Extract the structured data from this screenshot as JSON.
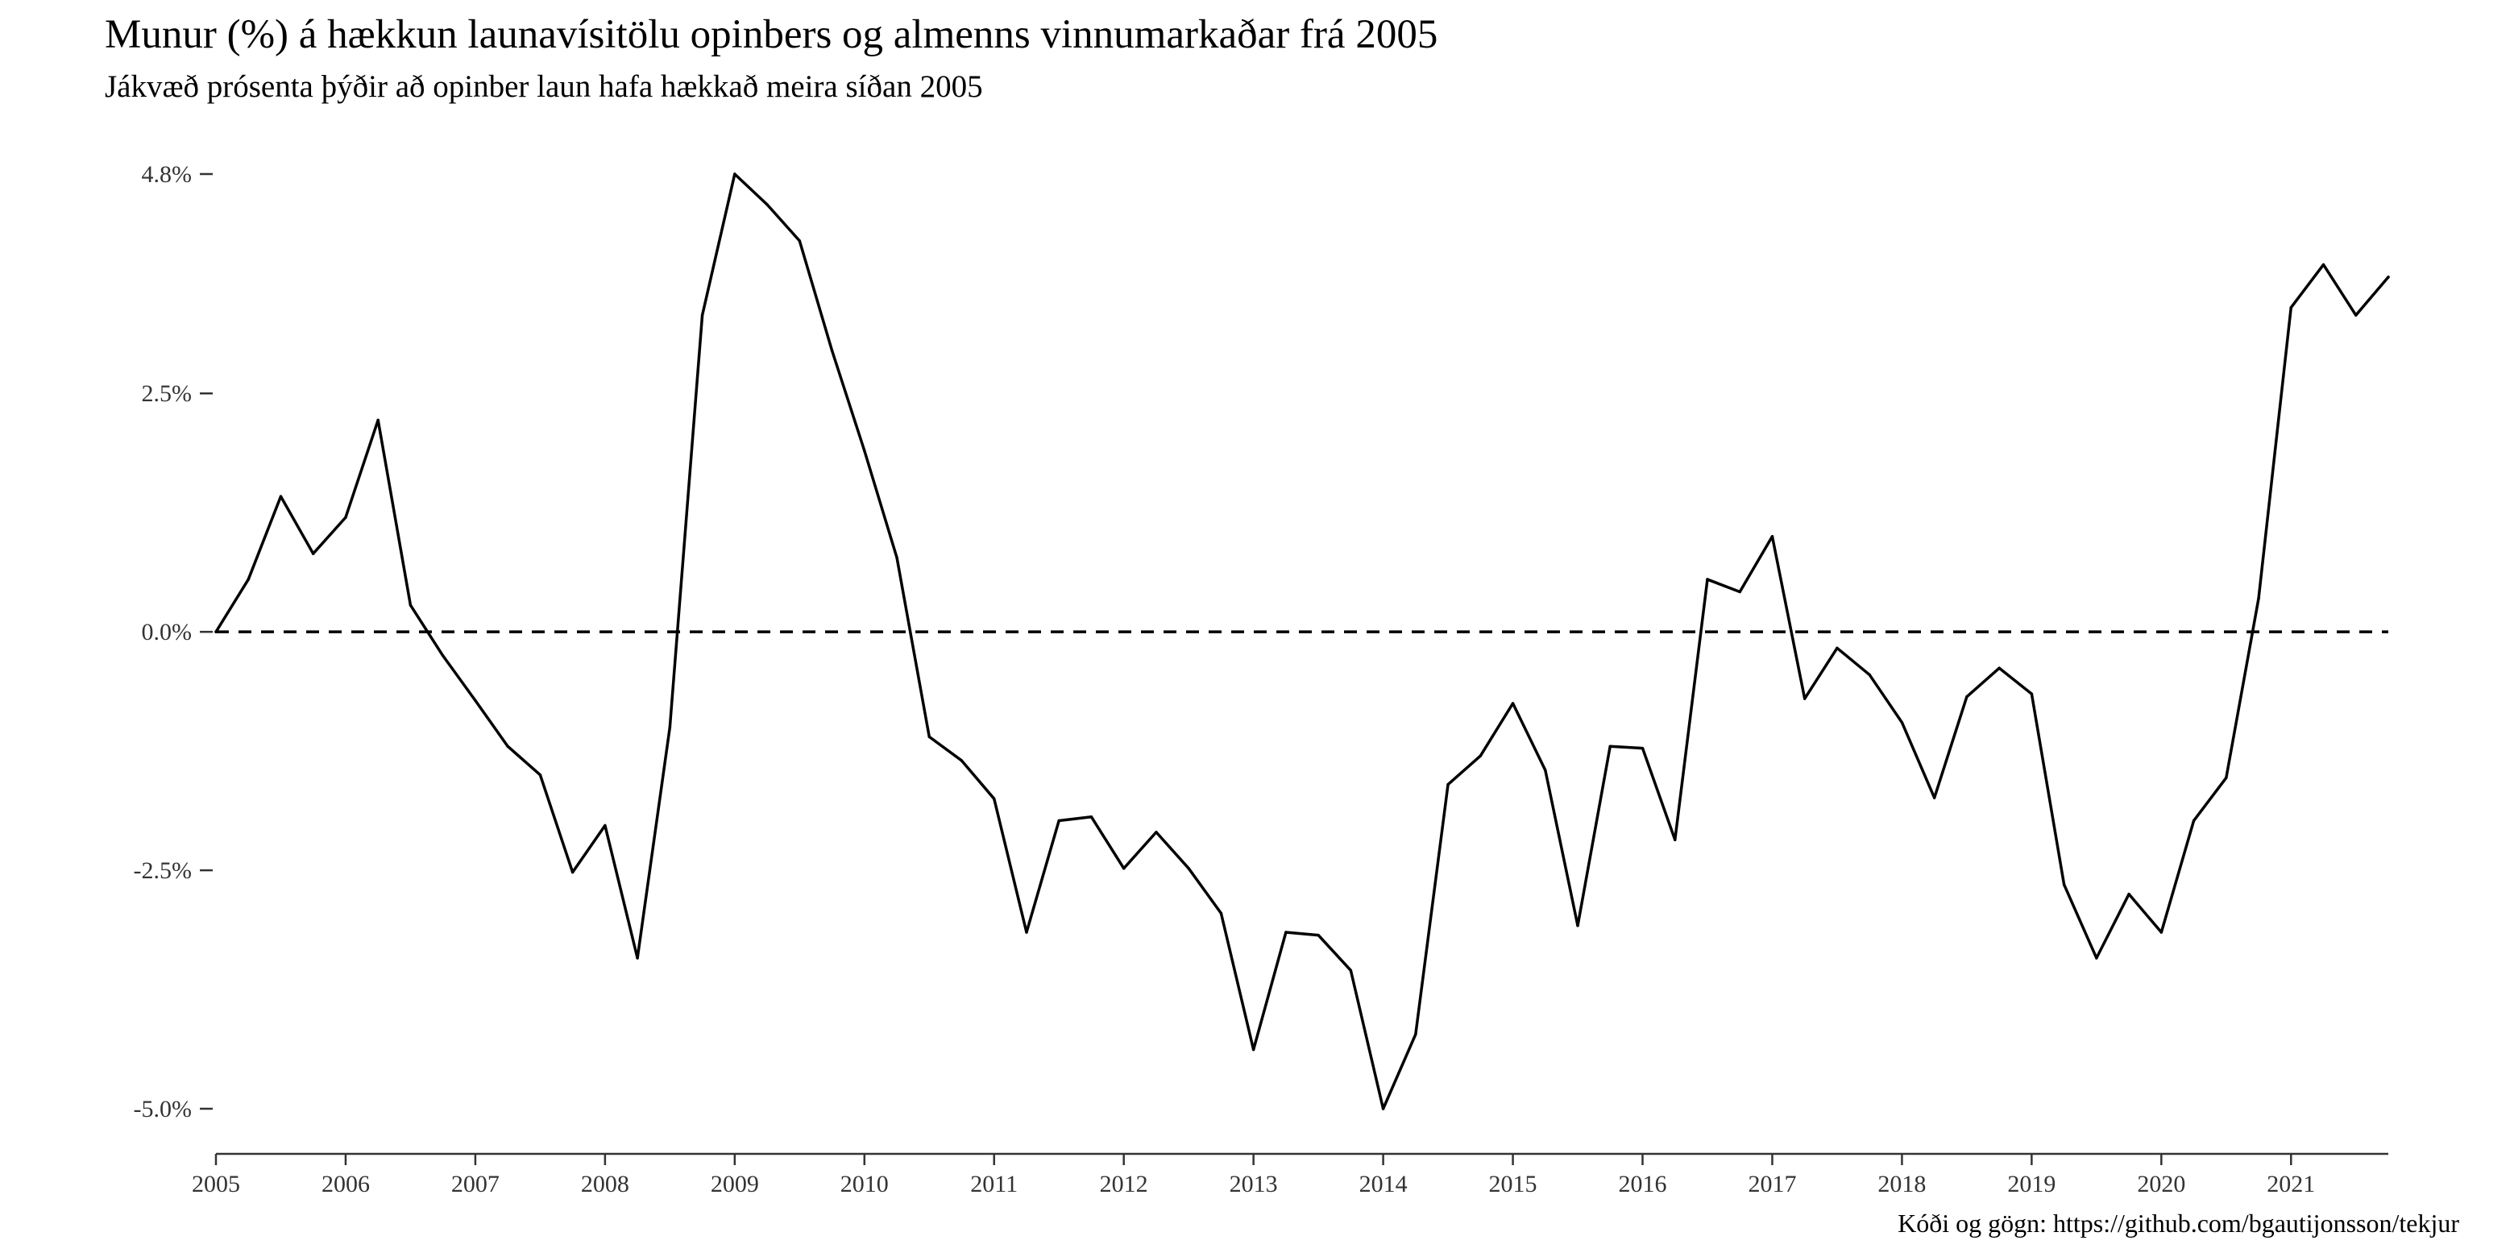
{
  "chart_data": {
    "type": "line",
    "title": "Munur (%) á hækkun launavísitölu opinbers og almenns vinnumarkaðar frá 2005",
    "subtitle": "Jákvæð prósenta þýðir að opinber laun hafa hækkað meira síðan 2005",
    "caption": "Kóði og gögn: https://github.com/bgautijonsson/tekjur",
    "xlabel": "",
    "ylabel": "",
    "xlim": [
      2005.0,
      2021.75
    ],
    "ylim": [
      -5.0,
      4.8
    ],
    "x_ticks": [
      2005,
      2006,
      2007,
      2008,
      2009,
      2010,
      2011,
      2012,
      2013,
      2014,
      2015,
      2016,
      2017,
      2018,
      2019,
      2020,
      2021
    ],
    "x_tick_labels": [
      "2005",
      "2006",
      "2007",
      "2008",
      "2009",
      "2010",
      "2011",
      "2012",
      "2013",
      "2014",
      "2015",
      "2016",
      "2017",
      "2018",
      "2019",
      "2020",
      "2021"
    ],
    "y_ticks": [
      -5.0,
      -2.5,
      0.0,
      2.5,
      4.8
    ],
    "y_tick_labels": [
      "-5.0%",
      "-2.5%",
      "0.0%",
      "2.5%",
      "4.8%"
    ],
    "reference_line": {
      "y": 0.0,
      "style": "dashed"
    },
    "grid": false,
    "legend": "none",
    "line_color": "#000000",
    "series": [
      {
        "x": [
          2005.0,
          2005.25,
          2005.5,
          2005.75,
          2006.0,
          2006.25,
          2006.5,
          2006.75,
          2007.0,
          2007.25,
          2007.5,
          2007.75,
          2008.0,
          2008.25,
          2008.5,
          2008.75,
          2009.0,
          2009.25,
          2009.5,
          2009.75,
          2010.0,
          2010.25,
          2010.5,
          2010.75,
          2011.0,
          2011.25,
          2011.5,
          2011.75,
          2012.0,
          2012.25,
          2012.5,
          2012.75,
          2013.0,
          2013.25,
          2013.5,
          2013.75,
          2014.0,
          2014.25,
          2014.5,
          2014.75,
          2015.0,
          2015.25,
          2015.5,
          2015.75,
          2016.0,
          2016.25,
          2016.5,
          2016.75,
          2017.0,
          2017.25,
          2017.5,
          2017.75,
          2018.0,
          2018.25,
          2018.5,
          2018.75,
          2019.0,
          2019.25,
          2019.5,
          2019.75,
          2020.0,
          2020.25,
          2020.5,
          2020.75,
          2021.0,
          2021.25,
          2021.5,
          2021.75
        ],
        "y": [
          0.0,
          0.55,
          1.42,
          0.82,
          1.2,
          2.22,
          0.28,
          -0.25,
          -0.72,
          -1.2,
          -1.5,
          -2.52,
          -2.03,
          -3.42,
          -1.0,
          3.32,
          4.8,
          4.48,
          4.1,
          2.95,
          1.9,
          0.78,
          -1.1,
          -1.35,
          -1.75,
          -3.15,
          -1.98,
          -1.94,
          -2.48,
          -2.1,
          -2.48,
          -2.95,
          -4.38,
          -3.15,
          -3.18,
          -3.55,
          -5.0,
          -4.22,
          -1.6,
          -1.3,
          -0.75,
          -1.45,
          -3.08,
          -1.2,
          -1.22,
          -2.18,
          0.55,
          0.42,
          1.0,
          -0.7,
          -0.17,
          -0.45,
          -0.95,
          -1.74,
          -0.68,
          -0.38,
          -0.65,
          -2.65,
          -3.42,
          -2.75,
          -3.15,
          -1.98,
          -1.53,
          0.35,
          3.4,
          3.85,
          3.32,
          3.72
        ]
      }
    ]
  }
}
